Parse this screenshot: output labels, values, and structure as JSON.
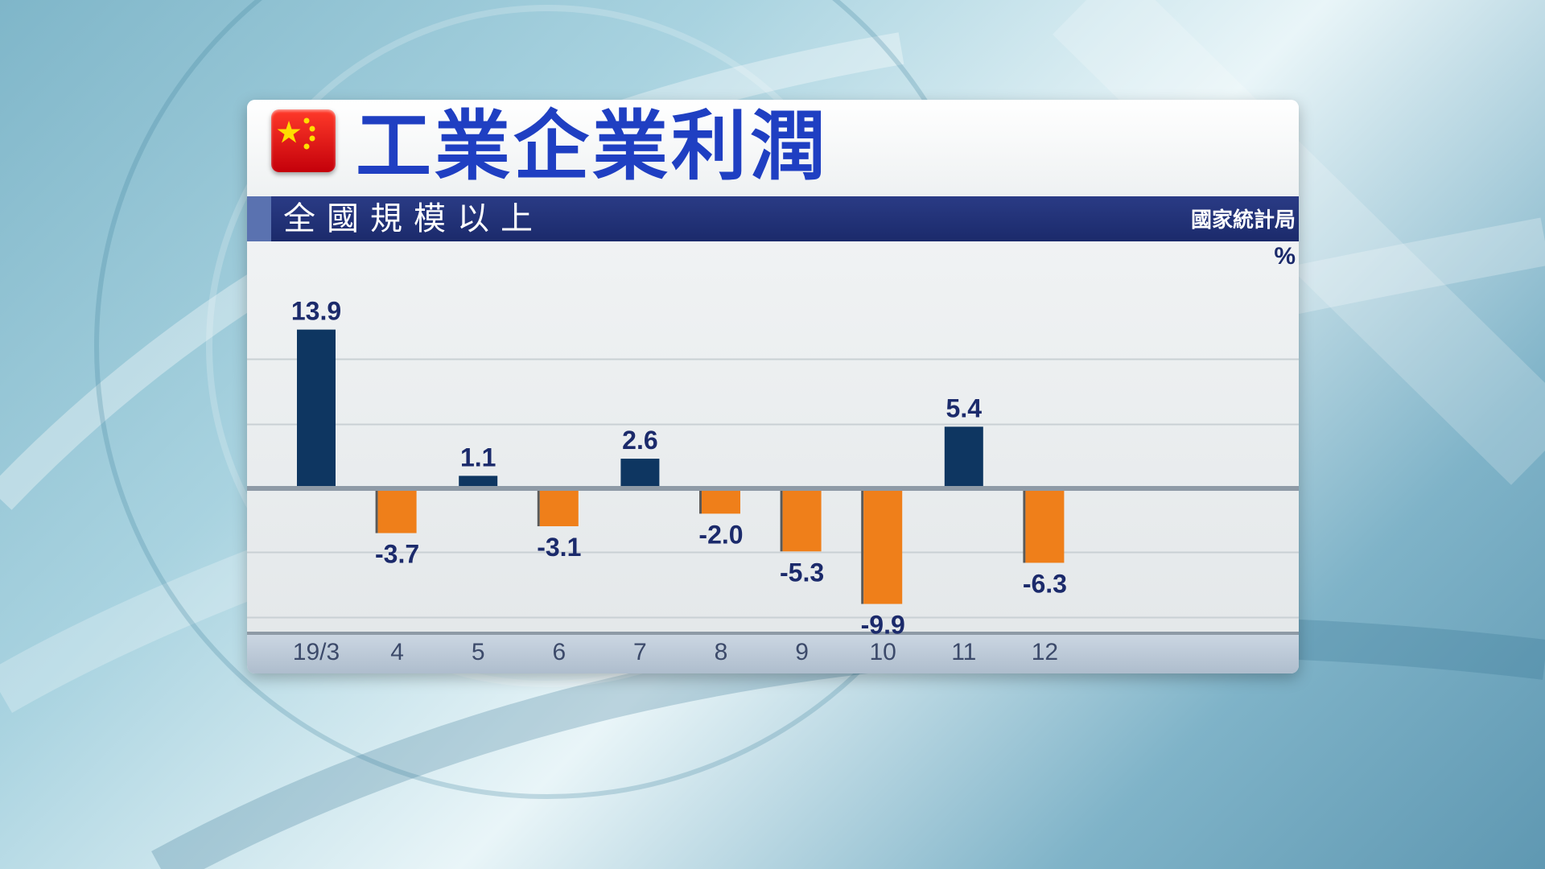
{
  "title": "工業企業利潤",
  "subtitle": "全國規模以上",
  "source": "國家統計局",
  "unit": "%",
  "colors": {
    "positive": "#0e3661",
    "negative": "#ef7f1a",
    "label": "#1b2a6b",
    "axis_label": "#3c4a6a"
  },
  "chart_data": {
    "type": "bar",
    "title": "工業企業利潤",
    "subtitle": "全國規模以上",
    "source": "國家統計局",
    "categories": [
      "19/3",
      "4",
      "5",
      "6",
      "7",
      "8",
      "9",
      "10",
      "11",
      "12"
    ],
    "values": [
      13.9,
      -3.7,
      1.1,
      -3.1,
      2.6,
      -2.0,
      -5.3,
      -9.9,
      5.4,
      -6.3
    ],
    "value_labels": [
      "13.9",
      "-3.7",
      "1.1",
      "-3.1",
      "2.6",
      "-2.0",
      "-5.3",
      "-9.9",
      "5.4",
      "-6.3"
    ],
    "ylabel": "%",
    "ylim": [
      -15,
      17
    ],
    "grid": true,
    "legend": "none"
  }
}
